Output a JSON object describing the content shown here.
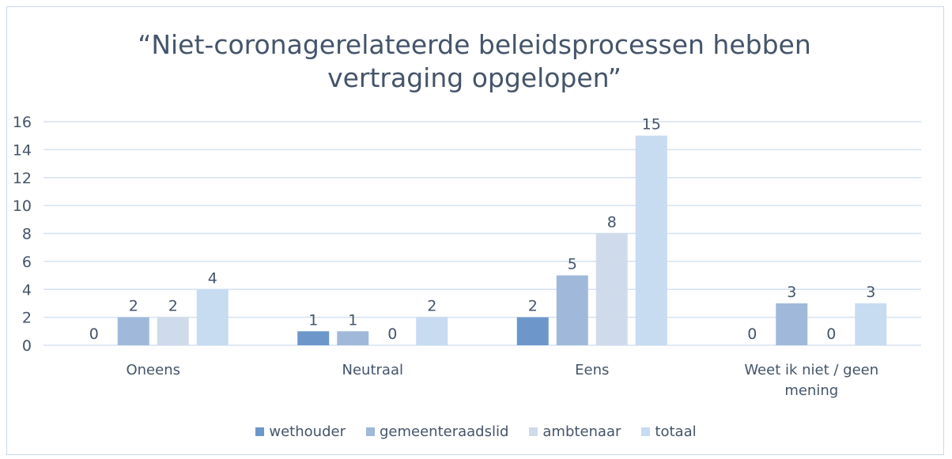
{
  "chart_data": {
    "type": "bar",
    "title": "“Niet-coronagerelateerde beleidsprocessen hebben vertraging opgelopen”",
    "categories": [
      "Oneens",
      "Neutraal",
      "Eens",
      "Weet ik niet / geen mening"
    ],
    "series": [
      {
        "name": "wethouder",
        "color": "#6d97cb",
        "values": [
          0,
          1,
          2,
          0
        ]
      },
      {
        "name": "gemeenteraadslid",
        "color": "#a0b9db",
        "values": [
          2,
          1,
          5,
          3
        ]
      },
      {
        "name": "ambtenaar",
        "color": "#cfdbeb",
        "values": [
          2,
          0,
          8,
          0
        ]
      },
      {
        "name": "totaal",
        "color": "#c7dbf1",
        "values": [
          4,
          2,
          15,
          3
        ]
      }
    ],
    "ylim": [
      0,
      16
    ],
    "yticks": [
      0,
      2,
      4,
      6,
      8,
      10,
      12,
      14,
      16
    ],
    "grid": true,
    "legend": "bottom"
  }
}
